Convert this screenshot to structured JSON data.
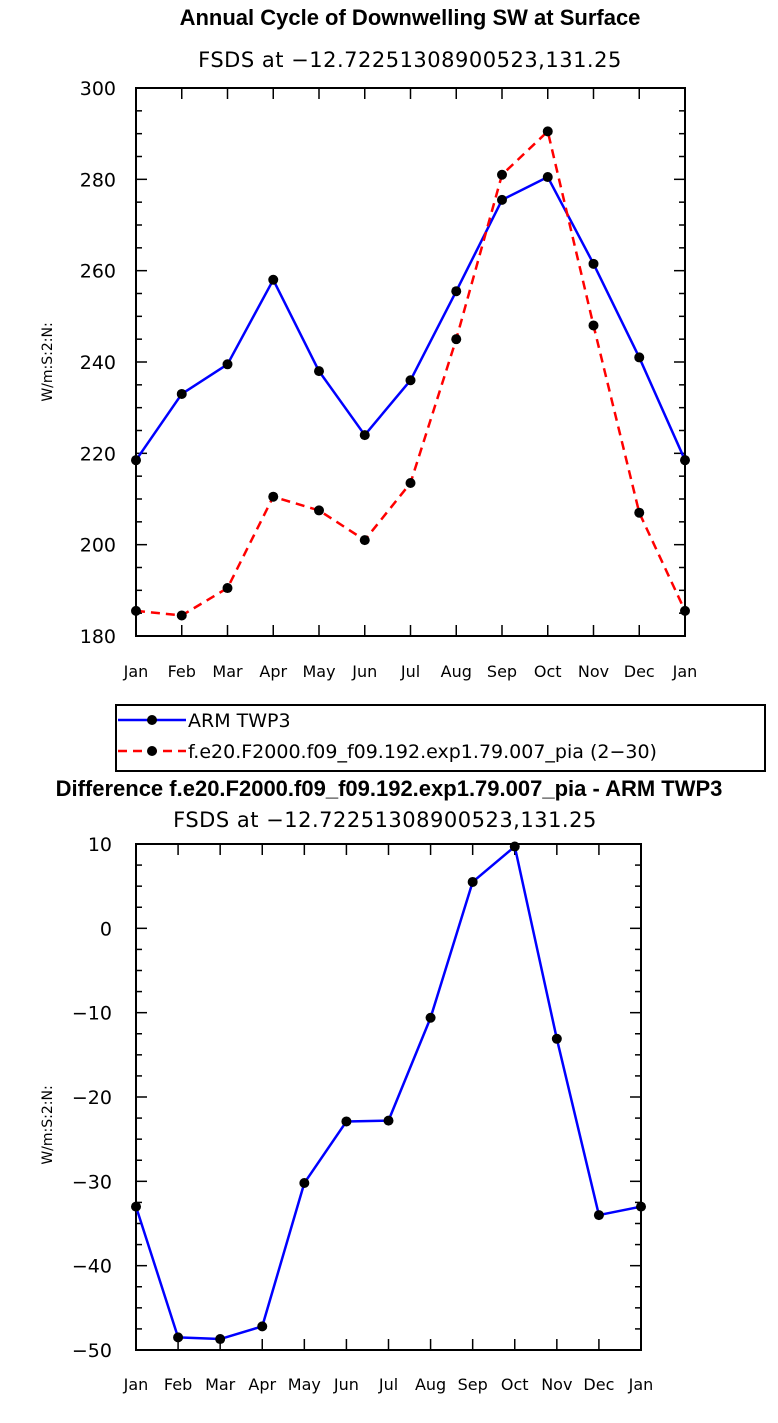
{
  "chart_data": [
    {
      "type": "line",
      "title": "Annual Cycle of Downwelling SW at Surface",
      "subtitle": "FSDS at −12.72251308900523,131.25",
      "ylabel": "W/m:S:2:N:",
      "xlabel": "",
      "ylim": [
        180,
        300
      ],
      "yticks": [
        180,
        200,
        220,
        240,
        260,
        280,
        300
      ],
      "ytick_labels": [
        "180",
        "200",
        "220",
        "240",
        "260",
        "280",
        "300"
      ],
      "categories": [
        "Jan",
        "Feb",
        "Mar",
        "Apr",
        "May",
        "Jun",
        "Jul",
        "Aug",
        "Sep",
        "Oct",
        "Nov",
        "Dec",
        "Jan"
      ],
      "series": [
        {
          "name": "ARM TWP3",
          "color": "#0000ff",
          "dash": "solid",
          "values": [
            218.5,
            233,
            239.5,
            258,
            238,
            224,
            236,
            255.5,
            275.5,
            280.5,
            261.5,
            241,
            218.5
          ]
        },
        {
          "name": "f.e20.F2000.f09_f09.192.exp1.79.007_pia (2−30)",
          "color": "#ff0000",
          "dash": "dashed",
          "values": [
            185.5,
            184.5,
            190.5,
            210.5,
            207.5,
            201,
            213.5,
            245,
            281,
            290.5,
            248,
            207,
            185.5
          ]
        }
      ],
      "legend_position": "below"
    },
    {
      "type": "line",
      "title": "Difference f.e20.F2000.f09_f09.192.exp1.79.007_pia - ARM TWP3",
      "subtitle": "FSDS at −12.72251308900523,131.25",
      "ylabel": "W/m:S:2:N:",
      "xlabel": "",
      "ylim": [
        -50,
        10
      ],
      "yticks": [
        -50,
        -40,
        -30,
        -20,
        -10,
        0,
        10
      ],
      "ytick_labels": [
        "−50",
        "−40",
        "−30",
        "−20",
        "−10",
        "0",
        "10"
      ],
      "categories": [
        "Jan",
        "Feb",
        "Mar",
        "Apr",
        "May",
        "Jun",
        "Jul",
        "Aug",
        "Sep",
        "Oct",
        "Nov",
        "Dec",
        "Jan"
      ],
      "series": [
        {
          "name": "Difference",
          "color": "#0000ff",
          "dash": "solid",
          "values": [
            -33,
            -48.5,
            -48.7,
            -47.2,
            -30.2,
            -22.9,
            -22.8,
            -10.6,
            5.5,
            9.7,
            -13.1,
            -34,
            -33
          ]
        }
      ]
    }
  ]
}
